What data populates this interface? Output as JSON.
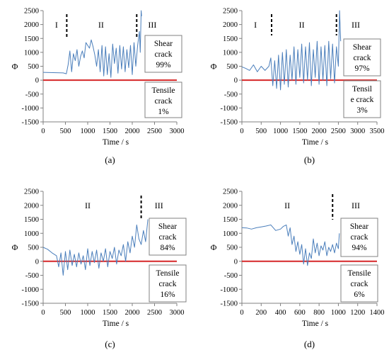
{
  "colors": {
    "signal": "#4a7ebb",
    "zero_line": "#d62728",
    "axis": "#808080",
    "text": "#000000"
  },
  "chart_data": [
    {
      "type": "line",
      "id": "a",
      "panel_label": "(a)",
      "xlabel": "Time / s",
      "ylabel": "Φ",
      "xlim": [
        0,
        3000
      ],
      "ylim": [
        -1500,
        2500
      ],
      "xticks": [
        0,
        500,
        1000,
        1500,
        2000,
        2500,
        3000
      ],
      "yticks": [
        -1500,
        -1000,
        -500,
        0,
        500,
        1000,
        1500,
        2000,
        2500
      ],
      "stage_dividers": [
        530,
        2100
      ],
      "stages": [
        {
          "label": "I",
          "x": 300
        },
        {
          "label": "II",
          "x": 1300
        },
        {
          "label": "III",
          "x": 2450
        }
      ],
      "shear_box": {
        "lines": [
          "Shear",
          "crack",
          "99%"
        ]
      },
      "tensile_box": {
        "lines": [
          "Tensile",
          "crack",
          "1%"
        ]
      },
      "series": [
        {
          "x": [
            0,
            450,
            520,
            560,
            600,
            640,
            680,
            720,
            760,
            800,
            840,
            880,
            920,
            960,
            1000,
            1040,
            1080,
            1120,
            1160,
            1200,
            1240,
            1280,
            1320,
            1360,
            1400,
            1440,
            1480,
            1520,
            1560,
            1600,
            1640,
            1680,
            1720,
            1760,
            1800,
            1840,
            1880,
            1920,
            1960,
            2000,
            2040,
            2080,
            2120,
            2160,
            2180,
            2200,
            2210
          ],
          "y": [
            280,
            260,
            230,
            550,
            1050,
            300,
            950,
            700,
            1100,
            500,
            850,
            1050,
            800,
            1350,
            1250,
            1150,
            1450,
            1200,
            900,
            500,
            1100,
            300,
            1250,
            150,
            1200,
            200,
            950,
            100,
            1300,
            600,
            1150,
            250,
            1250,
            400,
            1200,
            300,
            1100,
            450,
            1250,
            200,
            1350,
            500,
            1250,
            1750,
            1000,
            2500,
            2300
          ]
        },
        {
          "x": [
            0,
            3000
          ],
          "y": [
            0,
            0
          ]
        }
      ]
    },
    {
      "type": "line",
      "id": "b",
      "panel_label": "(b)",
      "xlabel": "Time / s",
      "ylabel": "Φ",
      "xlim": [
        0,
        3500
      ],
      "ylim": [
        -1500,
        2500
      ],
      "xticks": [
        0,
        500,
        1000,
        1500,
        2000,
        2500,
        3000,
        3500
      ],
      "yticks": [
        -1500,
        -1000,
        -500,
        0,
        500,
        1000,
        1500,
        2000,
        2500
      ],
      "stage_dividers": [
        770,
        2450
      ],
      "stages": [
        {
          "label": "I",
          "x": 350
        },
        {
          "label": "II",
          "x": 1550
        },
        {
          "label": "III",
          "x": 2950
        }
      ],
      "shear_box": {
        "lines": [
          "Shear",
          "crack",
          "97%"
        ]
      },
      "tensile_box": {
        "lines": [
          "Tensil",
          "e crack",
          "3%"
        ]
      },
      "series": [
        {
          "x": [
            0,
            100,
            200,
            300,
            400,
            500,
            600,
            700,
            750,
            800,
            850,
            900,
            950,
            1000,
            1050,
            1100,
            1150,
            1200,
            1250,
            1300,
            1350,
            1400,
            1450,
            1500,
            1550,
            1600,
            1650,
            1700,
            1750,
            1800,
            1850,
            1900,
            1950,
            2000,
            2050,
            2100,
            2150,
            2200,
            2250,
            2300,
            2350,
            2400,
            2450,
            2500,
            2530,
            2560
          ],
          "y": [
            480,
            420,
            350,
            550,
            300,
            500,
            350,
            500,
            800,
            -200,
            700,
            -300,
            900,
            -350,
            1000,
            -150,
            1100,
            -250,
            900,
            0,
            1200,
            -150,
            1100,
            100,
            1300,
            -100,
            1200,
            0,
            1350,
            -200,
            1100,
            100,
            1400,
            -150,
            1200,
            0,
            1250,
            -200,
            1400,
            50,
            1300,
            -100,
            1200,
            500,
            2500,
            1400
          ]
        },
        {
          "x": [
            0,
            3500
          ],
          "y": [
            0,
            0
          ]
        }
      ]
    },
    {
      "type": "line",
      "id": "c",
      "panel_label": "(c)",
      "xlabel": "Time / s",
      "ylabel": "Φ",
      "xlim": [
        0,
        3000
      ],
      "ylim": [
        -1500,
        2500
      ],
      "xticks": [
        0,
        500,
        1000,
        1500,
        2000,
        2500,
        3000
      ],
      "yticks": [
        -1500,
        -1000,
        -500,
        0,
        500,
        1000,
        1500,
        2000,
        2500
      ],
      "stage_dividers": [
        2200
      ],
      "stages": [
        {
          "label": "II",
          "x": 1000
        },
        {
          "label": "III",
          "x": 2600
        }
      ],
      "shear_box": {
        "lines": [
          "Shear",
          "crack",
          "84%"
        ]
      },
      "tensile_box": {
        "lines": [
          "Tensile",
          "crack",
          "16%"
        ]
      },
      "series": [
        {
          "x": [
            0,
            100,
            200,
            300,
            350,
            400,
            450,
            500,
            550,
            600,
            650,
            700,
            750,
            800,
            850,
            900,
            950,
            1000,
            1050,
            1100,
            1150,
            1200,
            1250,
            1300,
            1350,
            1400,
            1450,
            1500,
            1550,
            1600,
            1650,
            1700,
            1750,
            1800,
            1850,
            1900,
            1950,
            2000,
            2050,
            2100,
            2150,
            2200,
            2250,
            2300,
            2350
          ],
          "y": [
            500,
            430,
            300,
            200,
            -200,
            300,
            -500,
            350,
            -300,
            400,
            -150,
            250,
            -200,
            300,
            -100,
            200,
            -300,
            450,
            -150,
            350,
            -50,
            400,
            -250,
            300,
            0,
            450,
            -200,
            350,
            100,
            500,
            -100,
            400,
            200,
            600,
            0,
            700,
            300,
            900,
            500,
            1300,
            800,
            600,
            1100,
            700,
            1500
          ]
        },
        {
          "x": [
            0,
            3000
          ],
          "y": [
            0,
            0
          ]
        }
      ]
    },
    {
      "type": "line",
      "id": "d",
      "panel_label": "(d)",
      "xlabel": "Time / s",
      "ylabel": "Φ",
      "xlim": [
        0,
        1400
      ],
      "ylim": [
        -1500,
        2500
      ],
      "xticks": [
        0,
        200,
        400,
        600,
        800,
        1000,
        1200,
        1400
      ],
      "yticks": [
        -1500,
        -1000,
        -500,
        0,
        500,
        1000,
        1500,
        2000,
        2500
      ],
      "stage_dividers": [
        940
      ],
      "stages": [
        {
          "label": "II",
          "x": 470
        },
        {
          "label": "III",
          "x": 1180
        }
      ],
      "shear_box": {
        "lines": [
          "Shear",
          "crack",
          "94%"
        ]
      },
      "tensile_box": {
        "lines": [
          "Tensile",
          "crack",
          "6%"
        ]
      },
      "series": [
        {
          "x": [
            0,
            50,
            100,
            150,
            200,
            250,
            300,
            350,
            400,
            430,
            460,
            480,
            500,
            520,
            540,
            560,
            580,
            600,
            620,
            640,
            660,
            680,
            700,
            720,
            740,
            760,
            780,
            800,
            820,
            840,
            860,
            880,
            900,
            920,
            940,
            960,
            980,
            1000,
            1010
          ],
          "y": [
            1200,
            1190,
            1150,
            1200,
            1230,
            1260,
            1300,
            1100,
            1150,
            1250,
            1300,
            900,
            1200,
            600,
            900,
            350,
            700,
            250,
            600,
            -100,
            450,
            -150,
            300,
            100,
            800,
            300,
            650,
            200,
            550,
            400,
            700,
            200,
            500,
            350,
            600,
            300,
            650,
            450,
            1000
          ]
        },
        {
          "x": [
            0,
            1400
          ],
          "y": [
            0,
            0
          ]
        }
      ]
    }
  ]
}
